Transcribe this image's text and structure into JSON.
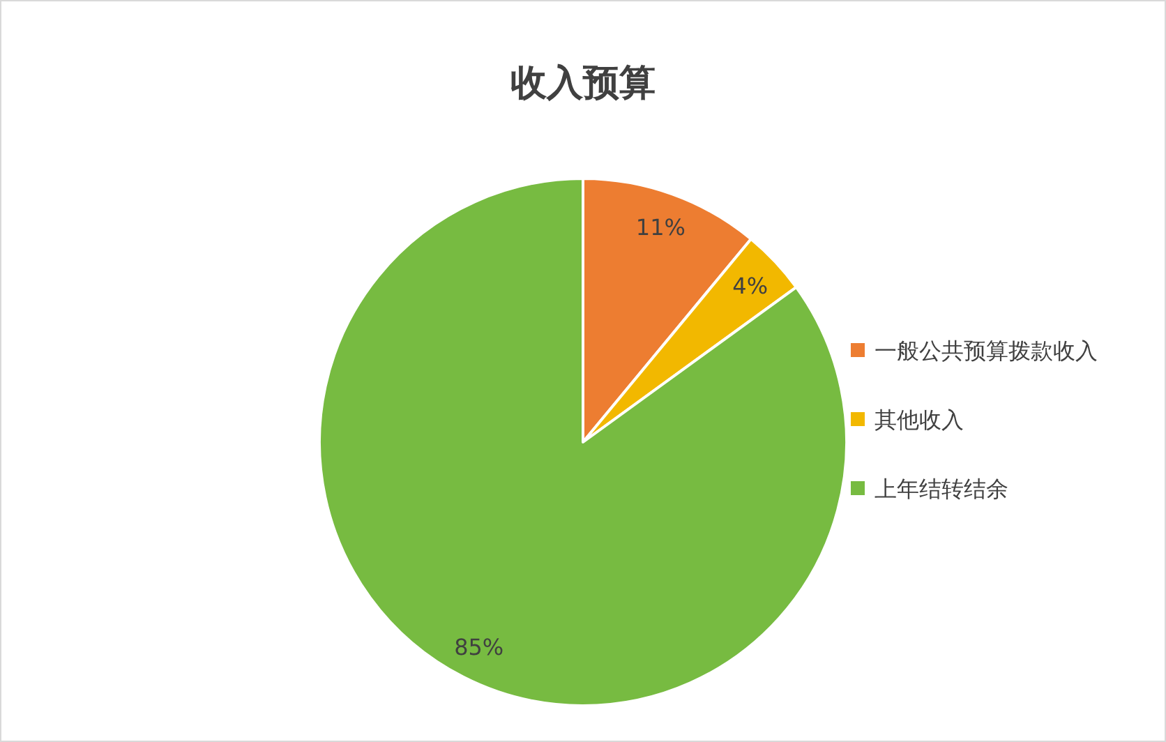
{
  "chart_data": {
    "type": "pie",
    "title": "收入预算",
    "categories": [
      "一般公共预算拨款收入",
      "其他收入",
      "上年结转结余"
    ],
    "values": [
      11,
      4,
      85
    ],
    "value_labels": [
      "11%",
      "4%",
      "85%"
    ],
    "colors": [
      "#ed7d31",
      "#f2b800",
      "#77bb41"
    ],
    "legend": "right"
  }
}
